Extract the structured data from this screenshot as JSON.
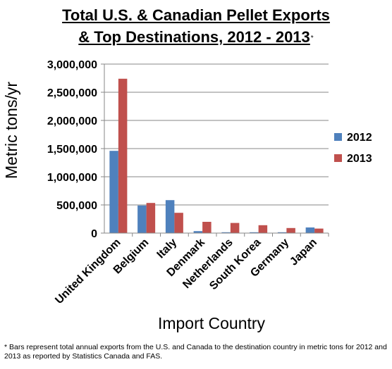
{
  "chart_data": {
    "type": "bar",
    "title_line1": "Total U.S. & Canadian Pellet Exports",
    "title_line2": "& Top Destinations, 2012 - 2013",
    "title_mark": "*",
    "xlabel": "Import Country",
    "ylabel": "Metric tons/yr",
    "ylim": [
      0,
      3000000
    ],
    "yticks": [
      0,
      500000,
      1000000,
      1500000,
      2000000,
      2500000,
      3000000
    ],
    "ytick_labels": [
      "0",
      "500,000",
      "1,000,000",
      "1,500,000",
      "2,000,000",
      "2,500,000",
      "3,000,000"
    ],
    "categories": [
      "United Kingdom",
      "Belgium",
      "Italy",
      "Denmark",
      "Netherlands",
      "South Korea",
      "Germany",
      "Japan"
    ],
    "series": [
      {
        "name": "2012",
        "color": "#4F81BD",
        "values": [
          1460000,
          490000,
          585000,
          35000,
          15000,
          15000,
          15000,
          100000
        ]
      },
      {
        "name": "2013",
        "color": "#C0504D",
        "values": [
          2740000,
          535000,
          360000,
          200000,
          180000,
          140000,
          90000,
          80000
        ]
      }
    ],
    "grid": true,
    "legend_position": "right"
  },
  "footnote": "* Bars represent total annual exports from the U.S. and Canada to the destination country in metric tons for 2012 and 2013 as reported by Statistics Canada and FAS."
}
